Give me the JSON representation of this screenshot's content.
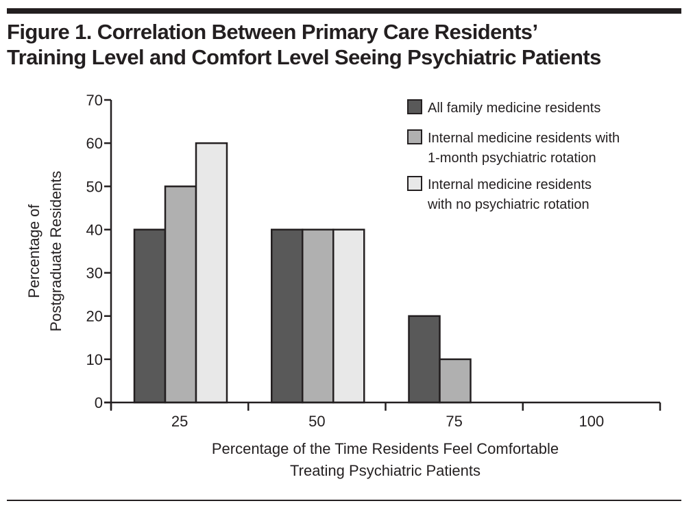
{
  "figure": {
    "title_line1": "Figure 1. Correlation Between Primary Care Residents’",
    "title_line2": "Training Level and Comfort Level Seeing Psychiatric Patients"
  },
  "chart_data": {
    "type": "bar",
    "title": "Figure 1. Correlation Between Primary Care Residents’ Training Level and Comfort Level Seeing Psychiatric Patients",
    "categories": [
      "25",
      "50",
      "75",
      "100"
    ],
    "series": [
      {
        "name": "All family medicine residents",
        "label_lines": [
          "All family medicine residents"
        ],
        "color": "#595959",
        "values": [
          40,
          40,
          20,
          0
        ]
      },
      {
        "name": "Internal medicine residents with 1-month psychiatric rotation",
        "label_lines": [
          "Internal medicine residents with",
          "1-month psychiatric rotation"
        ],
        "color": "#b0b0b0",
        "values": [
          50,
          40,
          10,
          0
        ]
      },
      {
        "name": "Internal medicine residents with no psychiatric rotation",
        "label_lines": [
          "Internal medicine residents",
          "with no psychiatric rotation"
        ],
        "color": "#e8e8e8",
        "values": [
          60,
          40,
          0,
          0
        ]
      }
    ],
    "xlabel_lines": [
      "Percentage of the Time Residents Feel Comfortable",
      "Treating Psychiatric Patients"
    ],
    "ylabel_lines": [
      "Percentage of",
      "Postgraduate Residents"
    ],
    "xlabel": "Percentage of the Time Residents Feel Comfortable Treating Psychiatric Patients",
    "ylabel": "Percentage of Postgraduate Residents",
    "ylim": [
      0,
      70
    ],
    "yticks": [
      0,
      10,
      20,
      30,
      40,
      50,
      60,
      70
    ],
    "grid": false,
    "legend_position": "top-right"
  }
}
